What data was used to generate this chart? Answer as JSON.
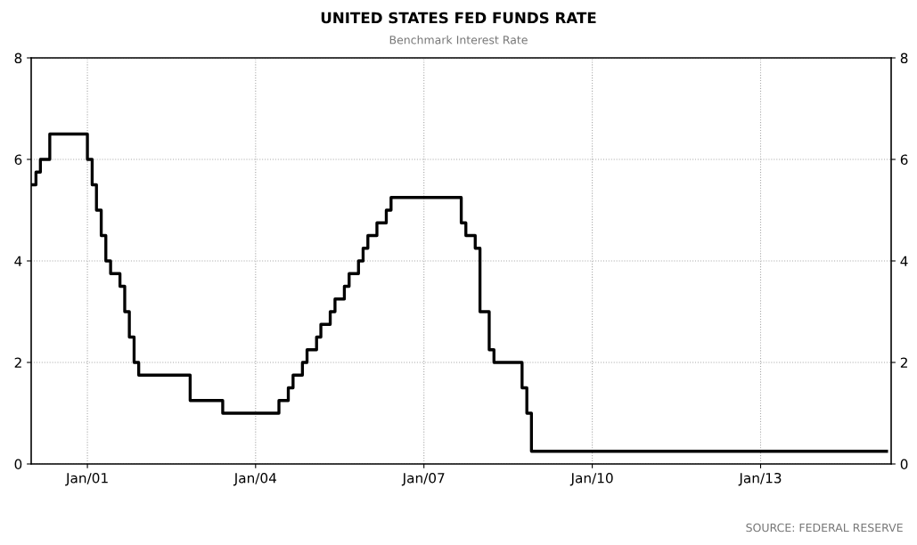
{
  "chart_data": {
    "type": "step",
    "title": "UNITED STATES FED FUNDS RATE",
    "subtitle": "Benchmark Interest Rate",
    "x": [
      "2000-01",
      "2000-02",
      "2000-03",
      "2000-05",
      "2001-01",
      "2001-02",
      "2001-03",
      "2001-04",
      "2001-05",
      "2001-06",
      "2001-08",
      "2001-09",
      "2001-10",
      "2001-11",
      "2001-12",
      "2002-11",
      "2003-06",
      "2004-06",
      "2004-08",
      "2004-09",
      "2004-11",
      "2004-12",
      "2005-02",
      "2005-03",
      "2005-05",
      "2005-06",
      "2005-08",
      "2005-09",
      "2005-11",
      "2005-12",
      "2006-01",
      "2006-03",
      "2006-05",
      "2006-06",
      "2007-09",
      "2007-10",
      "2007-12",
      "2008-01",
      "2008-03",
      "2008-04",
      "2008-10",
      "2008-11",
      "2008-12",
      "2015-04"
    ],
    "series": [
      {
        "color": "#000000",
        "values": [
          5.5,
          5.75,
          6.0,
          6.5,
          6.0,
          5.5,
          5.0,
          4.5,
          4.0,
          3.75,
          3.5,
          3.0,
          2.5,
          2.0,
          1.75,
          1.25,
          1.0,
          1.25,
          1.5,
          1.75,
          2.0,
          2.25,
          2.5,
          2.75,
          3.0,
          3.25,
          3.5,
          3.75,
          4.0,
          4.25,
          4.5,
          4.75,
          5.0,
          5.25,
          4.75,
          4.5,
          4.25,
          3.0,
          2.25,
          2.0,
          1.5,
          1.0,
          0.25,
          0.25
        ]
      }
    ],
    "xlim": [
      "2000-01",
      "2015-05"
    ],
    "xticks": [
      {
        "value": "2001-01",
        "label": "Jan/01"
      },
      {
        "value": "2004-01",
        "label": "Jan/04"
      },
      {
        "value": "2007-01",
        "label": "Jan/07"
      },
      {
        "value": "2010-01",
        "label": "Jan/10"
      },
      {
        "value": "2013-01",
        "label": "Jan/13"
      }
    ],
    "ylim": [
      0,
      8
    ],
    "yticks": [
      0,
      2,
      4,
      6,
      8
    ],
    "y2lim": [
      0,
      8
    ],
    "y2ticks": [
      0,
      2,
      4,
      6,
      8
    ],
    "grid": true,
    "line_style": "solid",
    "marker": "none",
    "annotations": [
      "SOURCE: FEDERAL RESERVE"
    ]
  }
}
